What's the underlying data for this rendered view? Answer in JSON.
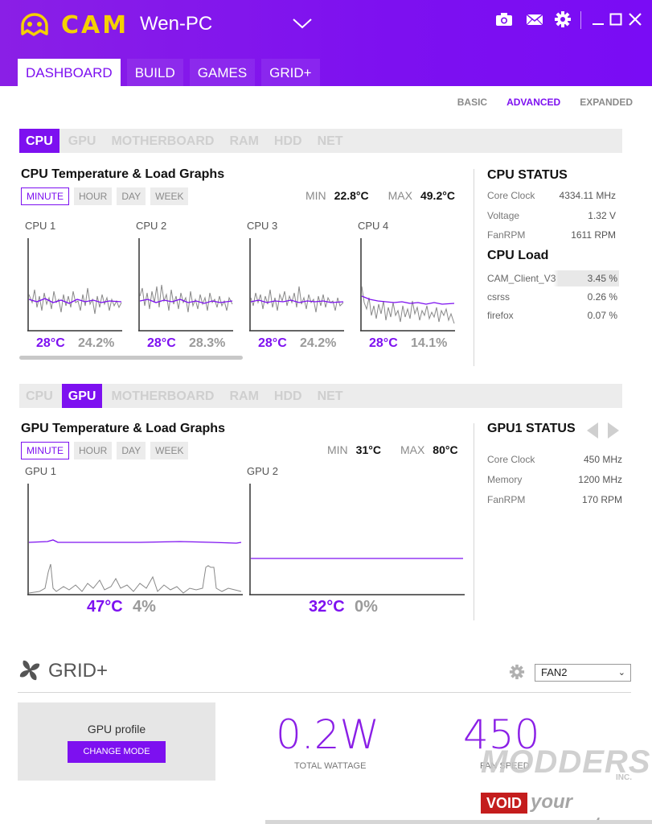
{
  "app": {
    "logo_text": "CAM",
    "pc_name": "Wen-PC"
  },
  "header_icons": [
    "camera-icon",
    "mail-icon",
    "gear-icon",
    "minimize-icon",
    "maximize-icon",
    "close-icon"
  ],
  "tabs": [
    {
      "label": "DASHBOARD",
      "active": true
    },
    {
      "label": "BUILD",
      "active": false
    },
    {
      "label": "GAMES",
      "active": false
    },
    {
      "label": "GRID+",
      "active": false
    }
  ],
  "view_modes": [
    {
      "label": "BASIC",
      "active": false
    },
    {
      "label": "ADVANCED",
      "active": true
    },
    {
      "label": "EXPANDED",
      "active": false
    }
  ],
  "cpu_section": {
    "subtabs": [
      "CPU",
      "GPU",
      "MOTHERBOARD",
      "RAM",
      "HDD",
      "NET"
    ],
    "active_subtab": "CPU",
    "title": "CPU Temperature & Load Graphs",
    "ranges": [
      "MINUTE",
      "HOUR",
      "DAY",
      "WEEK"
    ],
    "min_label": "MIN",
    "min_value": "22.8°C",
    "max_label": "MAX",
    "max_value": "49.2°C",
    "cores": [
      {
        "label": "CPU 1",
        "temp": "28°C",
        "load": "24.2%"
      },
      {
        "label": "CPU 2",
        "temp": "28°C",
        "load": "28.3%"
      },
      {
        "label": "CPU 3",
        "temp": "28°C",
        "load": "24.2%"
      },
      {
        "label": "CPU 4",
        "temp": "28°C",
        "load": "14.1%"
      }
    ],
    "status": {
      "title": "CPU STATUS",
      "rows": [
        {
          "label": "Core Clock",
          "value": "4334.11 MHz"
        },
        {
          "label": "Voltage",
          "value": "1.32 V"
        },
        {
          "label": "FanRPM",
          "value": "1611 RPM"
        }
      ],
      "load_title": "CPU Load",
      "processes": [
        {
          "name": "CAM_Client_V3",
          "value": "3.45 %"
        },
        {
          "name": "csrss",
          "value": "0.26 %"
        },
        {
          "name": "firefox",
          "value": "0.07 %"
        }
      ]
    }
  },
  "gpu_section": {
    "subtabs": [
      "CPU",
      "GPU",
      "MOTHERBOARD",
      "RAM",
      "HDD",
      "NET"
    ],
    "active_subtab": "GPU",
    "title": "GPU Temperature & Load Graphs",
    "ranges": [
      "MINUTE",
      "HOUR",
      "DAY",
      "WEEK"
    ],
    "min_label": "MIN",
    "min_value": "31°C",
    "max_label": "MAX",
    "max_value": "80°C",
    "gpus": [
      {
        "label": "GPU 1",
        "temp": "47°C",
        "load": "4%"
      },
      {
        "label": "GPU 2",
        "temp": "32°C",
        "load": "0%"
      }
    ],
    "status": {
      "title": "GPU1 STATUS",
      "rows": [
        {
          "label": "Core Clock",
          "value": "450 MHz"
        },
        {
          "label": "Memory",
          "value": "1200 MHz"
        },
        {
          "label": "FanRPM",
          "value": "170 RPM"
        }
      ]
    }
  },
  "grid": {
    "title": "GRID+",
    "fan_select": "FAN2",
    "profile_label": "GPU profile",
    "change_mode": "CHANGE MODE",
    "wattage_value": "0.2W",
    "wattage_caption": "TOTAL WATTAGE",
    "fan_speed_value": "450",
    "fan_speed_caption": "FAN SPEED"
  },
  "watermark": {
    "line1": "MODDERS",
    "suffix": "INC.",
    "line2a": "VOID",
    "line2b": "your warranty"
  },
  "colors": {
    "accent": "#7d10f0",
    "header": "#8a1fe6",
    "logo": "#f5d000"
  }
}
